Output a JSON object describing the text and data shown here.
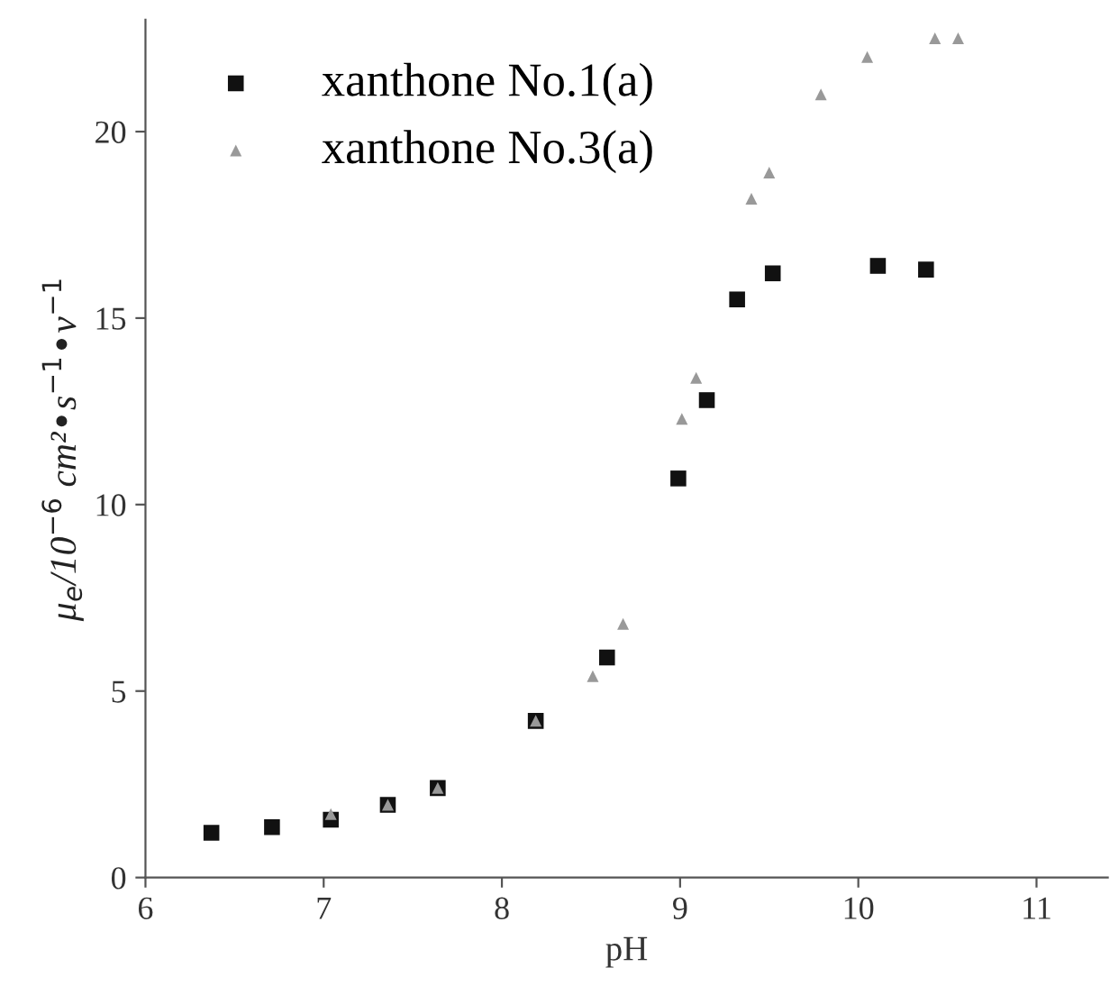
{
  "chart_data": {
    "type": "scatter",
    "xlabel": "pH",
    "ylabel": "μ$_{e}$/10$^{−6}$ cm²•s$^{−1}$•v$^{−1}$",
    "xlim": [
      6,
      11.4
    ],
    "xticks": [
      6,
      7,
      8,
      9,
      10,
      11
    ],
    "ylim": [
      0,
      23
    ],
    "yticks": [
      0,
      5,
      10,
      15,
      20
    ],
    "legend": "top left",
    "grid": false,
    "series": [
      {
        "name": "xanthone No.1(a)",
        "color": "#111111",
        "marker": "square",
        "x": [
          6.37,
          6.71,
          7.04,
          7.36,
          7.64,
          8.19,
          8.59,
          8.99,
          9.15,
          9.32,
          9.52,
          10.11,
          10.38
        ],
        "values": [
          1.2,
          1.35,
          1.55,
          1.95,
          2.4,
          4.2,
          5.9,
          10.7,
          12.8,
          15.5,
          16.2,
          16.4,
          16.3
        ]
      },
      {
        "name": "xanthone No.3(a)",
        "color": "#999999",
        "marker": "triangle",
        "x": [
          7.04,
          7.36,
          7.64,
          8.19,
          8.51,
          8.68,
          9.01,
          9.09,
          9.4,
          9.5,
          9.79,
          10.05,
          10.43,
          10.56
        ],
        "values": [
          1.7,
          1.95,
          2.4,
          4.2,
          5.4,
          6.8,
          12.3,
          13.4,
          18.2,
          18.9,
          21.0,
          22.0,
          22.5,
          22.5
        ]
      }
    ]
  }
}
